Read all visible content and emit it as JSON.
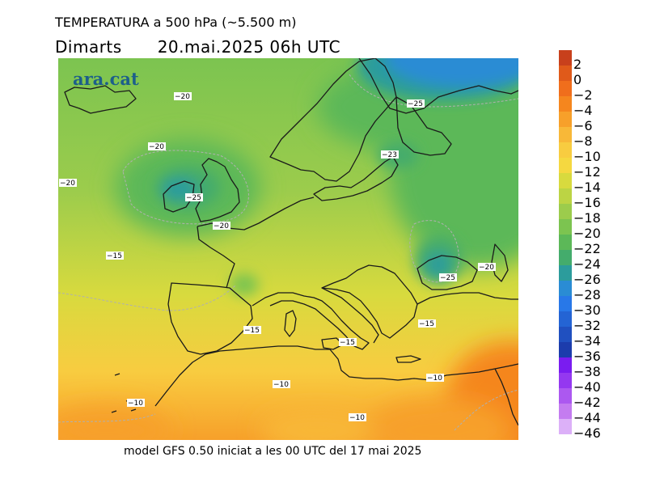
{
  "title": "TEMPERATURA a 500 hPa (~5.500 m)",
  "day": "Dimarts",
  "datetime": "20.mai.2025 06h UTC",
  "logo": "ara.cat",
  "footer": "model GFS 0.50 iniciat a les 00 UTC del 17 mai 2025",
  "legend": {
    "labels": [
      "2",
      "0",
      "−2",
      "−4",
      "−6",
      "−8",
      "−10",
      "−12",
      "−14",
      "−16",
      "−18",
      "−20",
      "−22",
      "−24",
      "−26",
      "−28",
      "−30",
      "−32",
      "−34",
      "−36",
      "−38",
      "−40",
      "−42",
      "−44",
      "−46"
    ],
    "colors": [
      "#c8401c",
      "#e05a1a",
      "#f06e1c",
      "#f5861e",
      "#f7a02a",
      "#f8b838",
      "#f8cc40",
      "#f5d840",
      "#d8da3e",
      "#bcd444",
      "#9ccc4c",
      "#7cc450",
      "#5cb858",
      "#44ac6c",
      "#2c9c9c",
      "#2a8cd4",
      "#2878e8",
      "#2464d4",
      "#2050c0",
      "#1c3cac",
      "#7a1cf0",
      "#9438f0",
      "#ac58f0",
      "#c47cf0",
      "#dcb0f8"
    ]
  },
  "isolines": [
    {
      "label": "−20"
    },
    {
      "label": "−20"
    },
    {
      "label": "−20"
    },
    {
      "label": "−25"
    },
    {
      "label": "−20"
    },
    {
      "label": "−25"
    },
    {
      "label": "−23"
    },
    {
      "label": "−15"
    },
    {
      "label": "−25"
    },
    {
      "label": "−20"
    },
    {
      "label": "−15"
    },
    {
      "label": "−15"
    },
    {
      "label": "−15"
    },
    {
      "label": "−10"
    },
    {
      "label": "−10"
    },
    {
      "label": "−10"
    },
    {
      "label": "−10"
    }
  ]
}
